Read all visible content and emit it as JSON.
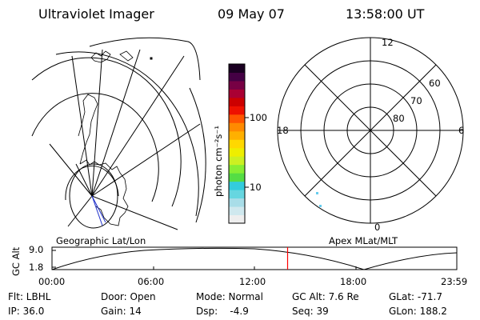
{
  "header": {
    "instrument": "Ultraviolet Imager",
    "date": "09 May 07",
    "time": "13:58:00 UT"
  },
  "geo_panel": {
    "label": "Geographic Lat/Lon"
  },
  "colorbar": {
    "unit_label": "photon cm⁻²s⁻¹",
    "tick_100": "100",
    "tick_10": "10",
    "colors": [
      "#eeeeee",
      "#cfe8ee",
      "#a8dde8",
      "#66d6e0",
      "#33ccdd",
      "#55dd44",
      "#88ee33",
      "#ccf022",
      "#eeee00",
      "#ffd800",
      "#ffb000",
      "#ff8a00",
      "#ff5500",
      "#ee1100",
      "#cc0000",
      "#aa0033",
      "#770044",
      "#440044",
      "#1a0022"
    ]
  },
  "polar_panel": {
    "label": "Apex MLat/MLT",
    "mlt_12": "12",
    "mlt_18": "18",
    "mlt_6": "6",
    "mlt_0": "0",
    "lat_60": "60",
    "lat_70": "70",
    "lat_80": "80"
  },
  "altitude_plot": {
    "ylabel": "GC Alt",
    "y_max": "9.0",
    "y_min": "1.8",
    "x_ticks": [
      "00:00",
      "06:00",
      "12:00",
      "18:00",
      "23:59"
    ],
    "current_time_hours": 13.967,
    "marker_color": "#ff0000"
  },
  "info": {
    "flt": "Flt: LBHL",
    "ip": "IP: 36.0",
    "door": "Door: Open",
    "gain": "Gain: 14",
    "mode": "Mode: Normal",
    "dsp": "Dsp:    -4.9",
    "gcalt": "GC Alt: 7.6 Re",
    "seq": "Seq: 39",
    "glat": "GLat: -71.7",
    "glon": "GLon: 188.2"
  }
}
